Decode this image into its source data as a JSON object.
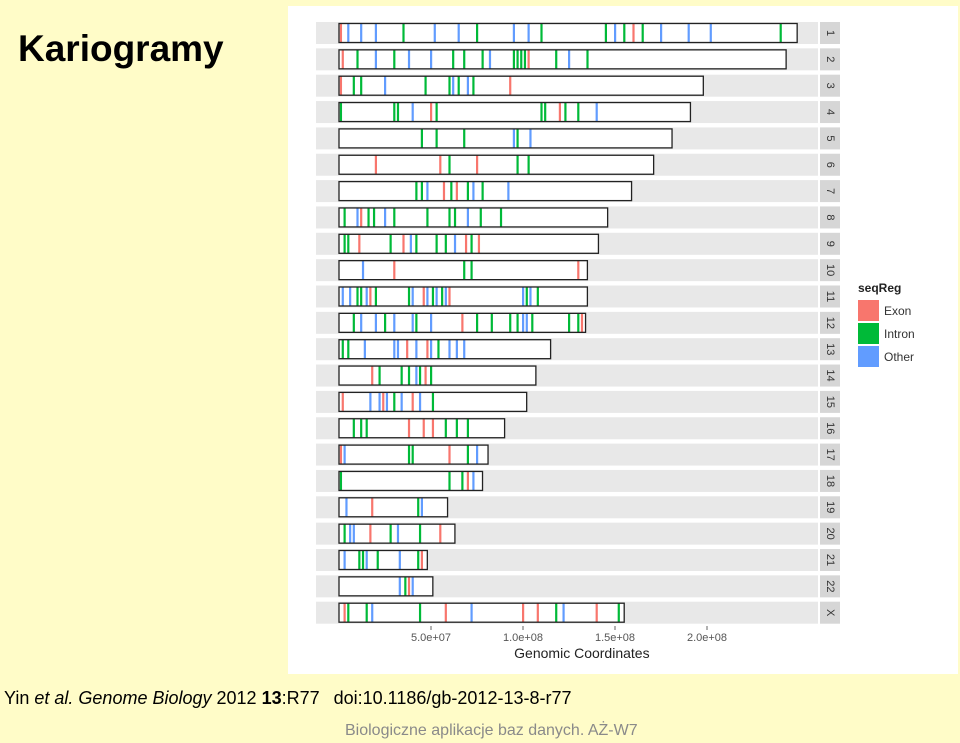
{
  "slide": {
    "title": "Kariogramy",
    "footer": "Biologiczne aplikacje baz danych. AŻ-W7"
  },
  "citation": {
    "authors": "Yin",
    "etal": "et al.",
    "journal": "Genome Biology",
    "year": "2012",
    "volume": "13",
    "article": ":R77",
    "doi": "doi:10.1186/gb-2012-13-8-r77"
  },
  "chart_data": {
    "type": "karyogram",
    "xlabel": "Genomic Coordinates",
    "xticks": [
      {
        "value": 50000000,
        "label": "5.0e+07"
      },
      {
        "value": 100000000,
        "label": "1.0e+08"
      },
      {
        "value": 150000000,
        "label": "1.5e+08"
      },
      {
        "value": 200000000,
        "label": "2.0e+08"
      }
    ],
    "legend": {
      "title": "seqReg",
      "entries": [
        {
          "label": "Exon",
          "color": "#f8766d"
        },
        {
          "label": "Intron",
          "color": "#00ba38"
        },
        {
          "label": "Other",
          "color": "#619cff"
        }
      ]
    },
    "chromosomes": [
      {
        "name": "1",
        "length": 249000000,
        "regions": [
          [
            1000000,
            "exon"
          ],
          [
            5000000,
            "other"
          ],
          [
            12000000,
            "other"
          ],
          [
            20000000,
            "other"
          ],
          [
            35000000,
            "intron"
          ],
          [
            52000000,
            "other"
          ],
          [
            65000000,
            "other"
          ],
          [
            75000000,
            "intron"
          ],
          [
            95000000,
            "other"
          ],
          [
            103000000,
            "other"
          ],
          [
            110000000,
            "intron"
          ],
          [
            145000000,
            "intron"
          ],
          [
            150000000,
            "other"
          ],
          [
            155000000,
            "intron"
          ],
          [
            160000000,
            "exon"
          ],
          [
            165000000,
            "intron"
          ],
          [
            175000000,
            "other"
          ],
          [
            190000000,
            "other"
          ],
          [
            202000000,
            "other"
          ],
          [
            240000000,
            "intron"
          ]
        ]
      },
      {
        "name": "2",
        "length": 243000000,
        "regions": [
          [
            2000000,
            "exon"
          ],
          [
            10000000,
            "intron"
          ],
          [
            20000000,
            "other"
          ],
          [
            30000000,
            "intron"
          ],
          [
            38000000,
            "other"
          ],
          [
            50000000,
            "other"
          ],
          [
            62000000,
            "intron"
          ],
          [
            68000000,
            "intron"
          ],
          [
            78000000,
            "intron"
          ],
          [
            82000000,
            "other"
          ],
          [
            95000000,
            "intron"
          ],
          [
            97000000,
            "intron"
          ],
          [
            99000000,
            "intron"
          ],
          [
            101000000,
            "intron"
          ],
          [
            103000000,
            "exon"
          ],
          [
            118000000,
            "intron"
          ],
          [
            125000000,
            "other"
          ],
          [
            135000000,
            "intron"
          ]
        ]
      },
      {
        "name": "3",
        "length": 198000000,
        "regions": [
          [
            1000000,
            "exon"
          ],
          [
            8000000,
            "intron"
          ],
          [
            12000000,
            "intron"
          ],
          [
            25000000,
            "other"
          ],
          [
            47000000,
            "intron"
          ],
          [
            60000000,
            "intron"
          ],
          [
            62000000,
            "other"
          ],
          [
            65000000,
            "intron"
          ],
          [
            70000000,
            "other"
          ],
          [
            73000000,
            "intron"
          ],
          [
            93000000,
            "exon"
          ]
        ]
      },
      {
        "name": "4",
        "length": 191000000,
        "regions": [
          [
            1000000,
            "intron"
          ],
          [
            30000000,
            "intron"
          ],
          [
            32000000,
            "intron"
          ],
          [
            40000000,
            "other"
          ],
          [
            50000000,
            "exon"
          ],
          [
            53000000,
            "intron"
          ],
          [
            110000000,
            "intron"
          ],
          [
            112000000,
            "intron"
          ],
          [
            120000000,
            "exon"
          ],
          [
            123000000,
            "intron"
          ],
          [
            130000000,
            "intron"
          ],
          [
            140000000,
            "other"
          ]
        ]
      },
      {
        "name": "5",
        "length": 181000000,
        "regions": [
          [
            45000000,
            "intron"
          ],
          [
            53000000,
            "intron"
          ],
          [
            68000000,
            "intron"
          ],
          [
            95000000,
            "other"
          ],
          [
            97000000,
            "intron"
          ],
          [
            104000000,
            "other"
          ]
        ]
      },
      {
        "name": "6",
        "length": 171000000,
        "regions": [
          [
            20000000,
            "exon"
          ],
          [
            55000000,
            "exon"
          ],
          [
            60000000,
            "intron"
          ],
          [
            75000000,
            "exon"
          ],
          [
            97000000,
            "intron"
          ],
          [
            103000000,
            "intron"
          ]
        ]
      },
      {
        "name": "7",
        "length": 159000000,
        "regions": [
          [
            42000000,
            "intron"
          ],
          [
            45000000,
            "intron"
          ],
          [
            48000000,
            "other"
          ],
          [
            57000000,
            "exon"
          ],
          [
            61000000,
            "intron"
          ],
          [
            64000000,
            "exon"
          ],
          [
            70000000,
            "intron"
          ],
          [
            73000000,
            "other"
          ],
          [
            78000000,
            "intron"
          ],
          [
            92000000,
            "other"
          ]
        ]
      },
      {
        "name": "8",
        "length": 146000000,
        "regions": [
          [
            3000000,
            "intron"
          ],
          [
            10000000,
            "other"
          ],
          [
            12000000,
            "exon"
          ],
          [
            16000000,
            "intron"
          ],
          [
            19000000,
            "intron"
          ],
          [
            25000000,
            "other"
          ],
          [
            30000000,
            "intron"
          ],
          [
            48000000,
            "intron"
          ],
          [
            60000000,
            "intron"
          ],
          [
            63000000,
            "intron"
          ],
          [
            70000000,
            "other"
          ],
          [
            77000000,
            "intron"
          ],
          [
            88000000,
            "intron"
          ]
        ]
      },
      {
        "name": "9",
        "length": 141000000,
        "regions": [
          [
            3000000,
            "intron"
          ],
          [
            5000000,
            "intron"
          ],
          [
            11000000,
            "exon"
          ],
          [
            28000000,
            "intron"
          ],
          [
            35000000,
            "exon"
          ],
          [
            39000000,
            "other"
          ],
          [
            42000000,
            "intron"
          ],
          [
            53000000,
            "intron"
          ],
          [
            58000000,
            "intron"
          ],
          [
            63000000,
            "other"
          ],
          [
            69000000,
            "exon"
          ],
          [
            72000000,
            "intron"
          ],
          [
            76000000,
            "exon"
          ]
        ]
      },
      {
        "name": "10",
        "length": 135000000,
        "regions": [
          [
            13000000,
            "other"
          ],
          [
            30000000,
            "exon"
          ],
          [
            68000000,
            "intron"
          ],
          [
            72000000,
            "intron"
          ],
          [
            130000000,
            "exon"
          ]
        ]
      },
      {
        "name": "11",
        "length": 135000000,
        "regions": [
          [
            2000000,
            "other"
          ],
          [
            6000000,
            "other"
          ],
          [
            10000000,
            "intron"
          ],
          [
            12000000,
            "intron"
          ],
          [
            15000000,
            "other"
          ],
          [
            17000000,
            "exon"
          ],
          [
            20000000,
            "intron"
          ],
          [
            38000000,
            "intron"
          ],
          [
            40000000,
            "other"
          ],
          [
            46000000,
            "exon"
          ],
          [
            48000000,
            "other"
          ],
          [
            51000000,
            "intron"
          ],
          [
            53000000,
            "other"
          ],
          [
            56000000,
            "intron"
          ],
          [
            58000000,
            "other"
          ],
          [
            60000000,
            "exon"
          ],
          [
            100000000,
            "other"
          ],
          [
            102000000,
            "intron"
          ],
          [
            104000000,
            "other"
          ],
          [
            108000000,
            "intron"
          ]
        ]
      },
      {
        "name": "12",
        "length": 134000000,
        "regions": [
          [
            8000000,
            "intron"
          ],
          [
            12000000,
            "other"
          ],
          [
            20000000,
            "other"
          ],
          [
            25000000,
            "intron"
          ],
          [
            30000000,
            "other"
          ],
          [
            40000000,
            "other"
          ],
          [
            42000000,
            "intron"
          ],
          [
            50000000,
            "other"
          ],
          [
            67000000,
            "exon"
          ],
          [
            75000000,
            "intron"
          ],
          [
            83000000,
            "intron"
          ],
          [
            93000000,
            "intron"
          ],
          [
            97000000,
            "intron"
          ],
          [
            100000000,
            "other"
          ],
          [
            102000000,
            "other"
          ],
          [
            105000000,
            "intron"
          ],
          [
            125000000,
            "intron"
          ],
          [
            130000000,
            "intron"
          ],
          [
            132000000,
            "exon"
          ]
        ]
      },
      {
        "name": "13",
        "length": 115000000,
        "regions": [
          [
            2000000,
            "intron"
          ],
          [
            5000000,
            "intron"
          ],
          [
            14000000,
            "other"
          ],
          [
            30000000,
            "other"
          ],
          [
            32000000,
            "other"
          ],
          [
            37000000,
            "exon"
          ],
          [
            42000000,
            "other"
          ],
          [
            48000000,
            "exon"
          ],
          [
            50000000,
            "other"
          ],
          [
            54000000,
            "intron"
          ],
          [
            60000000,
            "other"
          ],
          [
            64000000,
            "other"
          ],
          [
            68000000,
            "other"
          ]
        ]
      },
      {
        "name": "14",
        "length": 107000000,
        "regions": [
          [
            18000000,
            "exon"
          ],
          [
            22000000,
            "intron"
          ],
          [
            34000000,
            "intron"
          ],
          [
            38000000,
            "intron"
          ],
          [
            42000000,
            "other"
          ],
          [
            44000000,
            "intron"
          ],
          [
            47000000,
            "exon"
          ],
          [
            50000000,
            "intron"
          ]
        ]
      },
      {
        "name": "15",
        "length": 102000000,
        "regions": [
          [
            2000000,
            "exon"
          ],
          [
            17000000,
            "other"
          ],
          [
            22000000,
            "other"
          ],
          [
            24000000,
            "exon"
          ],
          [
            26000000,
            "other"
          ],
          [
            30000000,
            "intron"
          ],
          [
            34000000,
            "other"
          ],
          [
            40000000,
            "exon"
          ],
          [
            44000000,
            "other"
          ],
          [
            51000000,
            "intron"
          ]
        ]
      },
      {
        "name": "16",
        "length": 90000000,
        "regions": [
          [
            8000000,
            "intron"
          ],
          [
            12000000,
            "intron"
          ],
          [
            15000000,
            "intron"
          ],
          [
            38000000,
            "exon"
          ],
          [
            46000000,
            "exon"
          ],
          [
            51000000,
            "exon"
          ],
          [
            58000000,
            "intron"
          ],
          [
            64000000,
            "intron"
          ],
          [
            70000000,
            "intron"
          ]
        ]
      },
      {
        "name": "17",
        "length": 81000000,
        "regions": [
          [
            1000000,
            "exon"
          ],
          [
            3000000,
            "other"
          ],
          [
            38000000,
            "intron"
          ],
          [
            40000000,
            "intron"
          ],
          [
            60000000,
            "exon"
          ],
          [
            70000000,
            "intron"
          ],
          [
            75000000,
            "other"
          ]
        ]
      },
      {
        "name": "18",
        "length": 78000000,
        "regions": [
          [
            1000000,
            "intron"
          ],
          [
            60000000,
            "intron"
          ],
          [
            67000000,
            "intron"
          ],
          [
            70000000,
            "exon"
          ],
          [
            73000000,
            "other"
          ]
        ]
      },
      {
        "name": "19",
        "length": 59000000,
        "regions": [
          [
            4000000,
            "other"
          ],
          [
            18000000,
            "exon"
          ],
          [
            43000000,
            "intron"
          ],
          [
            45000000,
            "other"
          ]
        ]
      },
      {
        "name": "20",
        "length": 63000000,
        "regions": [
          [
            3000000,
            "intron"
          ],
          [
            6000000,
            "other"
          ],
          [
            8000000,
            "other"
          ],
          [
            17000000,
            "exon"
          ],
          [
            28000000,
            "intron"
          ],
          [
            32000000,
            "other"
          ],
          [
            44000000,
            "intron"
          ],
          [
            55000000,
            "exon"
          ]
        ]
      },
      {
        "name": "21",
        "length": 48000000,
        "regions": [
          [
            3000000,
            "other"
          ],
          [
            11000000,
            "intron"
          ],
          [
            13000000,
            "intron"
          ],
          [
            15000000,
            "other"
          ],
          [
            21000000,
            "intron"
          ],
          [
            33000000,
            "other"
          ],
          [
            43000000,
            "intron"
          ],
          [
            45000000,
            "exon"
          ]
        ]
      },
      {
        "name": "22",
        "length": 51000000,
        "regions": [
          [
            33000000,
            "other"
          ],
          [
            36000000,
            "intron"
          ],
          [
            38000000,
            "exon"
          ],
          [
            40000000,
            "other"
          ]
        ]
      },
      {
        "name": "X",
        "length": 155000000,
        "regions": [
          [
            3000000,
            "exon"
          ],
          [
            5000000,
            "intron"
          ],
          [
            15000000,
            "intron"
          ],
          [
            18000000,
            "other"
          ],
          [
            44000000,
            "intron"
          ],
          [
            58000000,
            "exon"
          ],
          [
            72000000,
            "other"
          ],
          [
            100000000,
            "exon"
          ],
          [
            108000000,
            "exon"
          ],
          [
            118000000,
            "intron"
          ],
          [
            122000000,
            "other"
          ],
          [
            140000000,
            "exon"
          ],
          [
            152000000,
            "intron"
          ]
        ]
      }
    ]
  }
}
